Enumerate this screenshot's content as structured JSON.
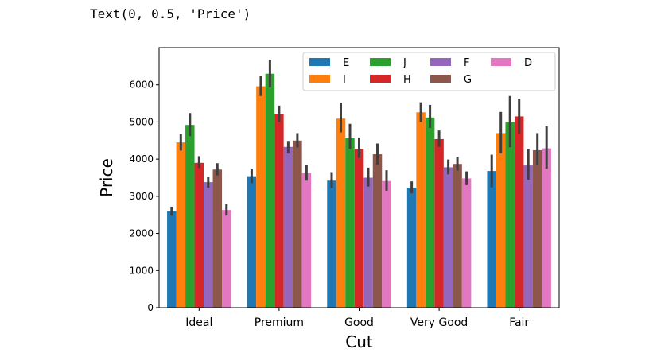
{
  "output": {
    "text": "Text(0, 0.5, 'Price')"
  },
  "chart_data": {
    "type": "bar",
    "title": "",
    "xlabel": "Cut",
    "ylabel": "Price",
    "ylim": [
      0,
      7000
    ],
    "yticks": [
      0,
      1000,
      2000,
      3000,
      4000,
      5000,
      6000
    ],
    "categories": [
      "Ideal",
      "Premium",
      "Good",
      "Very Good",
      "Fair"
    ],
    "grid": false,
    "legend_position": "top-right",
    "legend_columns": 4,
    "series": [
      {
        "name": "E",
        "color": "#1f77b4",
        "values": [
          2600,
          3540,
          3420,
          3230,
          3680
        ],
        "errors": [
          [
            2480,
            2720
          ],
          [
            3350,
            3730
          ],
          [
            3220,
            3650
          ],
          [
            3080,
            3400
          ],
          [
            3240,
            4120
          ]
        ]
      },
      {
        "name": "I",
        "color": "#ff7f0e",
        "values": [
          4450,
          5960,
          5090,
          5260,
          4700
        ],
        "errors": [
          [
            4230,
            4680
          ],
          [
            5700,
            6230
          ],
          [
            4720,
            5520
          ],
          [
            5000,
            5530
          ],
          [
            4150,
            5270
          ]
        ]
      },
      {
        "name": "J",
        "color": "#2ca02c",
        "values": [
          4920,
          6300,
          4580,
          5120,
          5000
        ],
        "errors": [
          [
            4620,
            5240
          ],
          [
            5930,
            6670
          ],
          [
            4280,
            4950
          ],
          [
            4840,
            5460
          ],
          [
            4320,
            5700
          ]
        ]
      },
      {
        "name": "H",
        "color": "#d62728",
        "values": [
          3900,
          5220,
          4280,
          4540,
          5150
        ],
        "errors": [
          [
            3760,
            4080
          ],
          [
            5000,
            5440
          ],
          [
            4030,
            4580
          ],
          [
            4330,
            4770
          ],
          [
            4690,
            5620
          ]
        ]
      },
      {
        "name": "F",
        "color": "#9467bd",
        "values": [
          3380,
          4330,
          3500,
          3780,
          3830
        ],
        "errors": [
          [
            3230,
            3520
          ],
          [
            4150,
            4490
          ],
          [
            3260,
            3770
          ],
          [
            3590,
            3990
          ],
          [
            3440,
            4270
          ]
        ]
      },
      {
        "name": "G",
        "color": "#8c564b",
        "values": [
          3720,
          4500,
          4130,
          3870,
          4240
        ],
        "errors": [
          [
            3560,
            3890
          ],
          [
            4310,
            4700
          ],
          [
            3850,
            4420
          ],
          [
            3690,
            4060
          ],
          [
            3830,
            4700
          ]
        ]
      },
      {
        "name": "D",
        "color": "#e377c2",
        "values": [
          2630,
          3630,
          3410,
          3480,
          4290
        ],
        "errors": [
          [
            2480,
            2790
          ],
          [
            3420,
            3840
          ],
          [
            3150,
            3700
          ],
          [
            3300,
            3670
          ],
          [
            3740,
            4880
          ]
        ]
      }
    ]
  }
}
